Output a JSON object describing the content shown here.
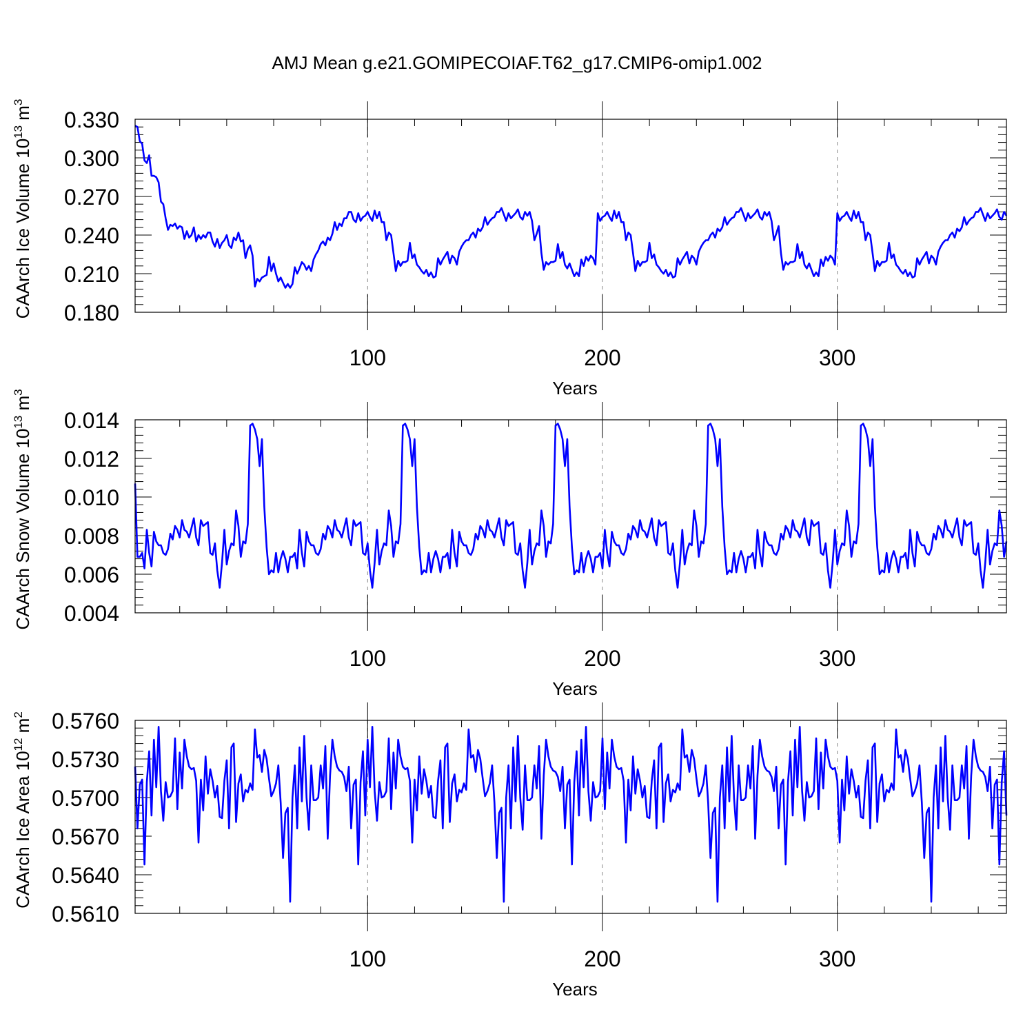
{
  "title": "AMJ Mean g.e21.GOMIPECOIAF.T62_g17.CMIP6-omip1.002",
  "colors": {
    "series": "#0000ff",
    "axis": "#000000",
    "grid": "#888888"
  },
  "chart_data": [
    {
      "type": "line",
      "panel": "ice-volume",
      "title": "",
      "xlabel": "Years",
      "ylabel": {
        "text": "CAArch Ice Volume 10",
        "exponent": "13",
        "unit": " m",
        "unit_exponent": "3"
      },
      "xlim": [
        1,
        372
      ],
      "ylim": [
        0.18,
        0.33
      ],
      "xticks": [
        100,
        200,
        300
      ],
      "xtick_labels": [
        "100",
        "200",
        "300"
      ],
      "yticks": [
        0.18,
        0.21,
        0.24,
        0.27,
        0.3,
        0.33
      ],
      "ytick_labels": [
        "0.180",
        "0.210",
        "0.240",
        "0.270",
        "0.300",
        "0.330"
      ],
      "grid": "vertical-dashed-at-major-ticks",
      "series": [
        {
          "name": "CAArch Ice Volume",
          "first_cycle": [
            0.325,
            0.324,
            0.313,
            0.311,
            0.298,
            0.296,
            0.302,
            0.286,
            0.286,
            0.285,
            0.281,
            0.266,
            0.264,
            0.253,
            0.244,
            0.248,
            0.247,
            0.249,
            0.245,
            0.247,
            0.246,
            0.237,
            0.243,
            0.238,
            0.24,
            0.246,
            0.235,
            0.24,
            0.237,
            0.24,
            0.238,
            0.242,
            0.242,
            0.235,
            0.231,
            0.237,
            0.23,
            0.234,
            0.236,
            0.24,
            0.232,
            0.23,
            0.238,
            0.236,
            0.242,
            0.235,
            0.236,
            0.222,
            0.229,
            0.232,
            0.224,
            0.2,
            0.206,
            0.204,
            0.207,
            0.208,
            0.209,
            0.223,
            0.212,
            0.218,
            0.21,
            0.204,
            0.207,
            0.203,
            0.199,
            0.202,
            0.199,
            0.202,
            0.215,
            0.21,
            0.214,
            0.219,
            0.217,
            0.213,
            0.216,
            0.212,
            0.221,
            0.225,
            0.228,
            0.233,
            0.235,
            0.232,
            0.238,
            0.236,
            0.241,
            0.25,
            0.244,
            0.249,
            0.247,
            0.253,
            0.253,
            0.258,
            0.258,
            0.252,
            0.25
          ],
          "cycle": [
            0.257,
            0.251,
            0.254,
            0.255,
            0.258,
            0.254,
            0.251,
            0.259,
            0.253,
            0.258,
            0.25,
            0.25,
            0.236,
            0.242,
            0.24,
            0.226,
            0.212,
            0.22,
            0.216,
            0.219,
            0.219,
            0.22,
            0.234,
            0.222,
            0.225,
            0.217,
            0.215,
            0.212,
            0.21,
            0.213,
            0.208,
            0.211,
            0.207,
            0.208,
            0.222,
            0.217,
            0.221,
            0.224,
            0.227,
            0.218,
            0.224,
            0.222,
            0.217,
            0.227,
            0.231,
            0.234,
            0.236,
            0.236,
            0.24,
            0.242,
            0.238,
            0.245,
            0.243,
            0.246,
            0.254,
            0.248,
            0.251,
            0.253,
            0.254,
            0.258,
            0.258,
            0.261,
            0.256,
            0.251,
            0.257,
            0.253,
            0.255,
            0.257,
            0.26,
            0.254,
            0.252,
            0.258,
            0.255,
            0.258,
            0.251,
            0.236,
            0.241,
            0.247,
            0.226,
            0.213,
            0.219,
            0.217,
            0.219,
            0.219,
            0.22,
            0.233,
            0.222,
            0.227,
            0.217,
            0.214,
            0.218,
            0.213,
            0.208,
            0.211,
            0.208,
            0.221,
            0.216,
            0.223,
            0.22,
            0.224,
            0.222,
            0.217
          ],
          "repeat_until_x": 372
        }
      ]
    },
    {
      "type": "line",
      "panel": "snow-volume",
      "title": "",
      "xlabel": "Years",
      "ylabel": {
        "text": "CAArch Snow Volume 10",
        "exponent": "13",
        "unit": " m",
        "unit_exponent": "3"
      },
      "xlim": [
        1,
        372
      ],
      "ylim": [
        0.004,
        0.014
      ],
      "xticks": [
        100,
        200,
        300
      ],
      "xtick_labels": [
        "100",
        "200",
        "300"
      ],
      "yticks": [
        0.004,
        0.006,
        0.008,
        0.01,
        0.012,
        0.014
      ],
      "ytick_labels": [
        "0.004",
        "0.006",
        "0.008",
        "0.010",
        "0.012",
        "0.014"
      ],
      "grid": "vertical-dashed-at-major-ticks",
      "series": [
        {
          "name": "CAArch Snow Volume",
          "first_point": 0.0107,
          "cycle": [
            0.0069,
            0.0069,
            0.0071,
            0.0063,
            0.0083,
            0.0071,
            0.0064,
            0.0082,
            0.0077,
            0.0075,
            0.0075,
            0.0071,
            0.007,
            0.0073,
            0.0081,
            0.0078,
            0.0085,
            0.0083,
            0.0079,
            0.0088,
            0.0083,
            0.0082,
            0.0079,
            0.0084,
            0.0089,
            0.0079,
            0.0075,
            0.0088,
            0.0085,
            0.0086,
            0.0087,
            0.0071,
            0.007,
            0.0076,
            0.0062,
            0.0053,
            0.0066,
            0.0083,
            0.0065,
            0.0072,
            0.0076,
            0.0075,
            0.0093,
            0.0085,
            0.0069,
            0.0077,
            0.0076,
            0.0086,
            0.0137,
            0.0138,
            0.0135,
            0.013,
            0.0116,
            0.013,
            0.0095,
            0.0074,
            0.006,
            0.0062,
            0.0061,
            0.0071,
            0.0061,
            0.0068,
            0.0072,
            0.0068,
            0.0061
          ],
          "repeat_until_x": 372
        }
      ]
    },
    {
      "type": "line",
      "panel": "ice-area",
      "title": "",
      "xlabel": "Years",
      "ylabel": {
        "text": "CAArch Ice Area 10",
        "exponent": "12",
        "unit": " m",
        "unit_exponent": "2"
      },
      "xlim": [
        1,
        372
      ],
      "ylim": [
        0.561,
        0.576
      ],
      "xticks": [
        100,
        200,
        300
      ],
      "xtick_labels": [
        "100",
        "200",
        "300"
      ],
      "yticks": [
        0.561,
        0.564,
        0.567,
        0.57,
        0.573,
        0.576
      ],
      "ytick_labels": [
        "0.5610",
        "0.5640",
        "0.5670",
        "0.5700",
        "0.5730",
        "0.5760"
      ],
      "grid": "vertical-dashed-at-major-ticks",
      "series": [
        {
          "name": "CAArch Ice Area",
          "cycle": [
            0.5724,
            0.5676,
            0.571,
            0.5714,
            0.5648,
            0.5712,
            0.5736,
            0.5686,
            0.5745,
            0.5708,
            0.5755,
            0.5705,
            0.5682,
            0.5712,
            0.57,
            0.5701,
            0.5705,
            0.5746,
            0.5691,
            0.5735,
            0.5707,
            0.5745,
            0.5732,
            0.5724,
            0.5722,
            0.5723,
            0.5713,
            0.5665,
            0.5714,
            0.569,
            0.5732,
            0.5703,
            0.5722,
            0.5713,
            0.57,
            0.5709,
            0.5685,
            0.5684,
            0.5713,
            0.5729,
            0.5676,
            0.5739,
            0.5742,
            0.5681,
            0.5711,
            0.5718,
            0.5697,
            0.5706,
            0.5704,
            0.5711,
            0.5706,
            0.5753,
            0.5731,
            0.5733,
            0.572,
            0.5737,
            0.573,
            0.5715,
            0.5701,
            0.5705,
            0.5711,
            0.5725,
            0.5696,
            0.5653,
            0.5688,
            0.5692,
            0.5619,
            0.57,
            0.5725,
            0.5676,
            0.5739,
            0.5697,
            0.5748,
            0.57,
            0.5675,
            0.5725,
            0.5698,
            0.5698,
            0.57,
            0.5725,
            0.5707,
            0.574,
            0.5668,
            0.5717,
            0.5745,
            0.5732,
            0.5724,
            0.5721,
            0.572,
            0.5716,
            0.5705
          ],
          "repeat_until_x": 372
        }
      ]
    }
  ]
}
